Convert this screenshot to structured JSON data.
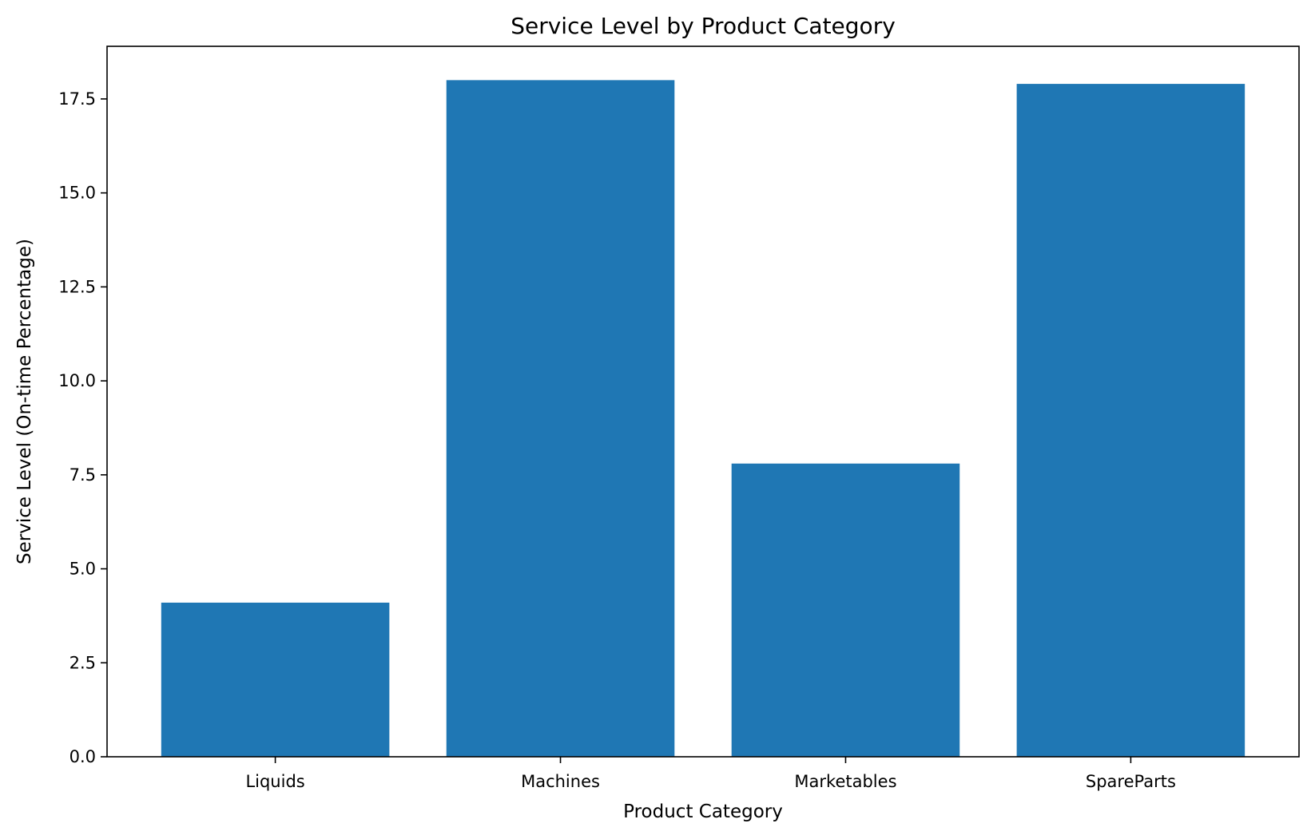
{
  "chart_data": {
    "type": "bar",
    "title": "Service Level by Product Category",
    "xlabel": "Product Category",
    "ylabel": "Service Level (On-time Percentage)",
    "categories": [
      "Liquids",
      "Machines",
      "Marketables",
      "SpareParts"
    ],
    "values": [
      4.1,
      18.0,
      7.8,
      17.9
    ],
    "ylim": [
      0,
      18.9
    ],
    "yticks": [
      0.0,
      2.5,
      5.0,
      7.5,
      10.0,
      12.5,
      15.0,
      17.5
    ],
    "ytick_labels": [
      "0.0",
      "2.5",
      "5.0",
      "7.5",
      "10.0",
      "12.5",
      "15.0",
      "17.5"
    ],
    "grid": false,
    "legend": "none",
    "colors": {
      "bar": "#1f77b4",
      "axes": "#000000",
      "background": "#ffffff"
    }
  }
}
